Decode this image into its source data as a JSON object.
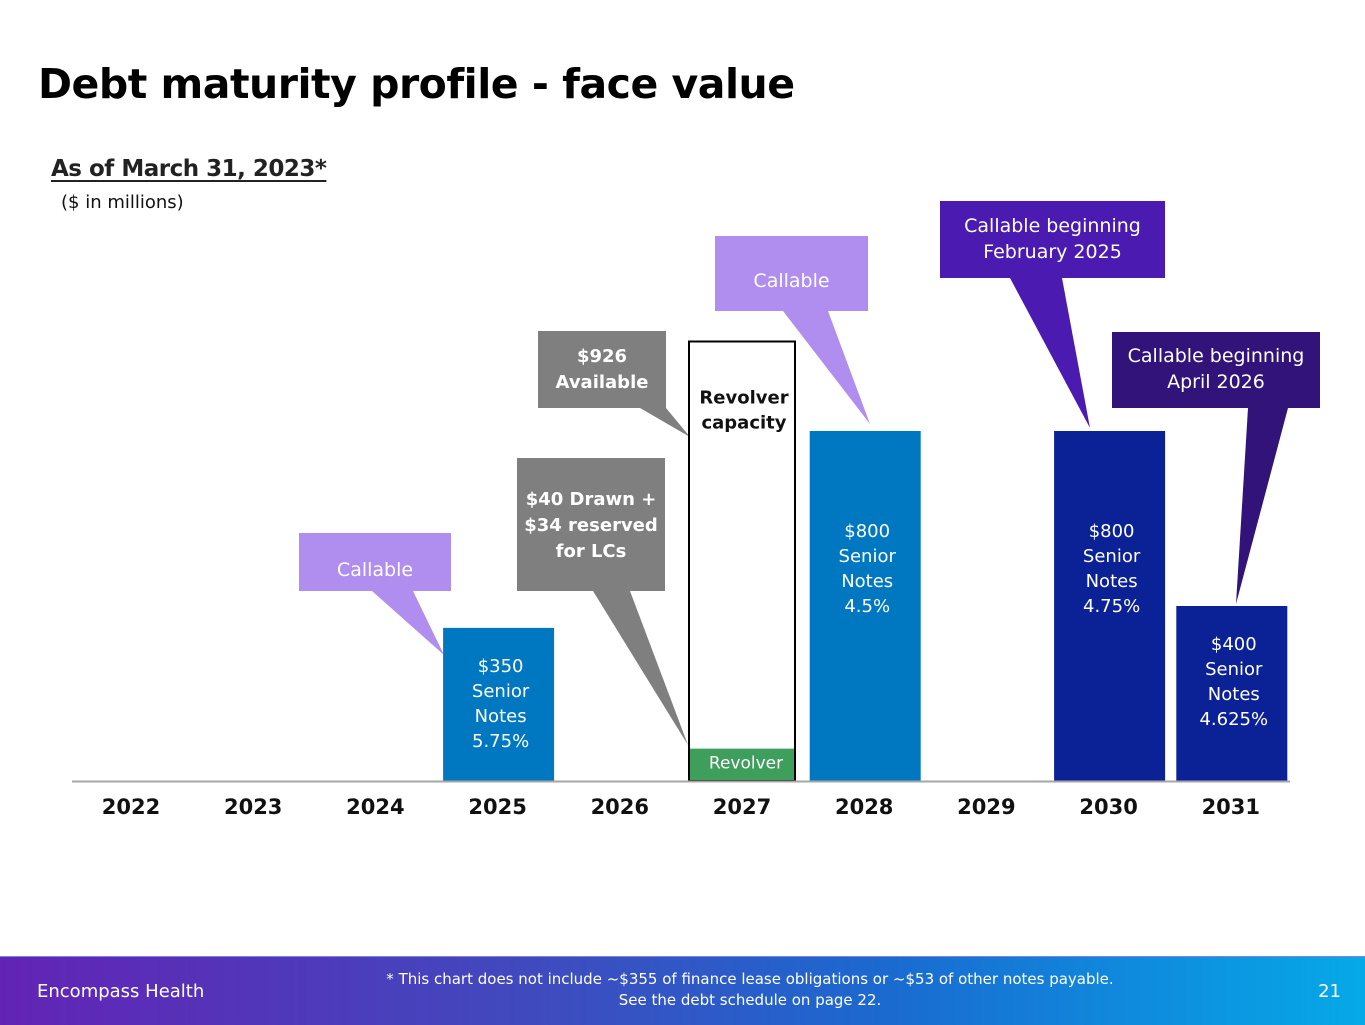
{
  "slide": {
    "title": "Debt maturity profile - face value",
    "as_of": "As of March 31, 2023*",
    "units": "($ in millions)"
  },
  "footer": {
    "brand": "Encompass Health",
    "note_line1": "* This chart does not include ~$355 of finance lease obligations or ~$53 of other notes payable.",
    "note_line2": "See the debt schedule on page 22.",
    "page_number": "21"
  },
  "colors": {
    "bar_2025": "#0078c1",
    "bar_2028": "#0078c1",
    "bar_2030": "#0b2196",
    "bar_2031": "#0b2196",
    "revolver_drawn": "#3e9e5c",
    "callout_light_purple": "#b08ef0",
    "callout_gray": "#7f7f7f",
    "callout_purple": "#4b1ab0",
    "callout_dark_purple": "#32137a",
    "axis": "#a6a6a6"
  },
  "chart_data": {
    "type": "bar",
    "title": "Debt maturity profile - face value",
    "subtitle": "As of March 31, 2023*",
    "ylabel": "($ in millions)",
    "xlabel": "",
    "ylim": [
      0,
      1000
    ],
    "grid": false,
    "categories": [
      "2022",
      "2023",
      "2024",
      "2025",
      "2026",
      "2027",
      "2028",
      "2029",
      "2030",
      "2031"
    ],
    "series": [
      {
        "name": "Senior Notes",
        "values": [
          0,
          0,
          0,
          350,
          0,
          0,
          800,
          0,
          800,
          400
        ]
      },
      {
        "name": "Revolver (drawn + LCs)",
        "values": [
          0,
          0,
          0,
          0,
          0,
          74,
          0,
          0,
          0,
          0
        ]
      },
      {
        "name": "Revolver capacity (available)",
        "values": [
          0,
          0,
          0,
          0,
          0,
          926,
          0,
          0,
          0,
          0
        ]
      }
    ],
    "bars": [
      {
        "category": "2025",
        "value": 350,
        "label_lines": [
          "$350",
          "Senior",
          "Notes",
          "5.75%"
        ],
        "color_key": "bar_2025"
      },
      {
        "category": "2027",
        "value": 74,
        "label_lines": [
          "Revolver"
        ],
        "color_key": "revolver_drawn",
        "kind": "revolver"
      },
      {
        "category": "2027",
        "value": 926,
        "stack_base": 74,
        "label_lines": [
          "Revolver",
          "capacity"
        ],
        "kind": "capacity"
      },
      {
        "category": "2028",
        "value": 800,
        "label_lines": [
          "$800",
          "Senior",
          "Notes",
          "4.5%"
        ],
        "color_key": "bar_2028"
      },
      {
        "category": "2030",
        "value": 800,
        "label_lines": [
          "$800",
          "Senior",
          "Notes",
          "4.75%"
        ],
        "color_key": "bar_2030"
      },
      {
        "category": "2031",
        "value": 400,
        "label_lines": [
          "$400",
          "Senior",
          "Notes",
          "4.625%"
        ],
        "color_key": "bar_2031"
      }
    ],
    "annotations": [
      {
        "text_lines": [
          "Callable"
        ],
        "points_to": "2025",
        "color_key": "callout_light_purple"
      },
      {
        "text_lines": [
          "$40 Drawn +",
          "$34 reserved",
          "for LCs"
        ],
        "points_to": "2027 revolver",
        "color_key": "callout_gray"
      },
      {
        "text_lines": [
          "$926",
          "Available"
        ],
        "points_to": "2027 capacity",
        "color_key": "callout_gray"
      },
      {
        "text_lines": [
          "Callable"
        ],
        "points_to": "2028",
        "color_key": "callout_light_purple"
      },
      {
        "text_lines": [
          "Callable beginning",
          "February 2025"
        ],
        "points_to": "2030",
        "color_key": "callout_purple"
      },
      {
        "text_lines": [
          "Callable beginning",
          "April 2026"
        ],
        "points_to": "2031",
        "color_key": "callout_dark_purple"
      }
    ]
  }
}
